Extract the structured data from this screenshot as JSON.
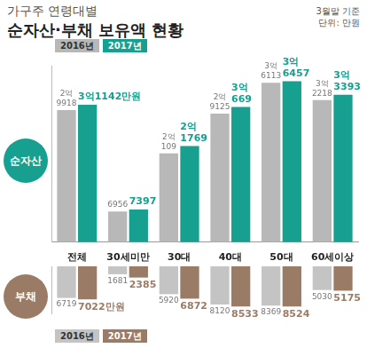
{
  "title": "가구주 연령대별",
  "subtitle": "순자산·부채 보유액 현황",
  "notes": [
    "3월말 기준",
    "단위: 만원"
  ],
  "chart_data": [
    {
      "type": "bar",
      "title": "순자산",
      "categories": [
        "전체",
        "30세미만",
        "30대",
        "40대",
        "50대",
        "60세이상"
      ],
      "series": [
        {
          "name": "2016년",
          "color": "#b8b8b8",
          "values": [
            29918,
            6956,
            20109,
            29125,
            36113,
            32218
          ],
          "value_labels": [
            "2억 9918",
            "6956",
            "2억 109",
            "2억 9125",
            "3억 6113",
            "3억 2218"
          ]
        },
        {
          "name": "2017년",
          "color": "#17a08f",
          "values": [
            31142,
            7397,
            21769,
            30669,
            36457,
            33393
          ],
          "value_labels": [
            "3억1142만원",
            "7397",
            "2억 1769",
            "3억 669",
            "3억 6457",
            "3억 3393"
          ]
        }
      ],
      "ylim": [
        0,
        40000
      ],
      "grid": false,
      "legend": "top left",
      "data_labels": true,
      "tick_labels": "x"
    },
    {
      "type": "bar",
      "title": "부채",
      "categories": [
        "전체",
        "30세미만",
        "30대",
        "40대",
        "50대",
        "60세이상"
      ],
      "series": [
        {
          "name": "2016년",
          "color": "#c4c4c4",
          "values": [
            6719,
            1681,
            5920,
            8120,
            8369,
            5030
          ],
          "value_labels": [
            "6719",
            "1681",
            "5920",
            "8120",
            "8369",
            "5030"
          ]
        },
        {
          "name": "2017년",
          "color": "#9a7b66",
          "values": [
            7022,
            2385,
            6872,
            8533,
            8524,
            5175
          ],
          "value_labels": [
            "7022만원",
            "2385",
            "6872",
            "8533",
            "8524",
            "5175"
          ]
        }
      ],
      "ylim": [
        0,
        10000
      ],
      "grid": false,
      "legend": "bottom left",
      "data_labels": true,
      "tick_labels": false
    }
  ]
}
